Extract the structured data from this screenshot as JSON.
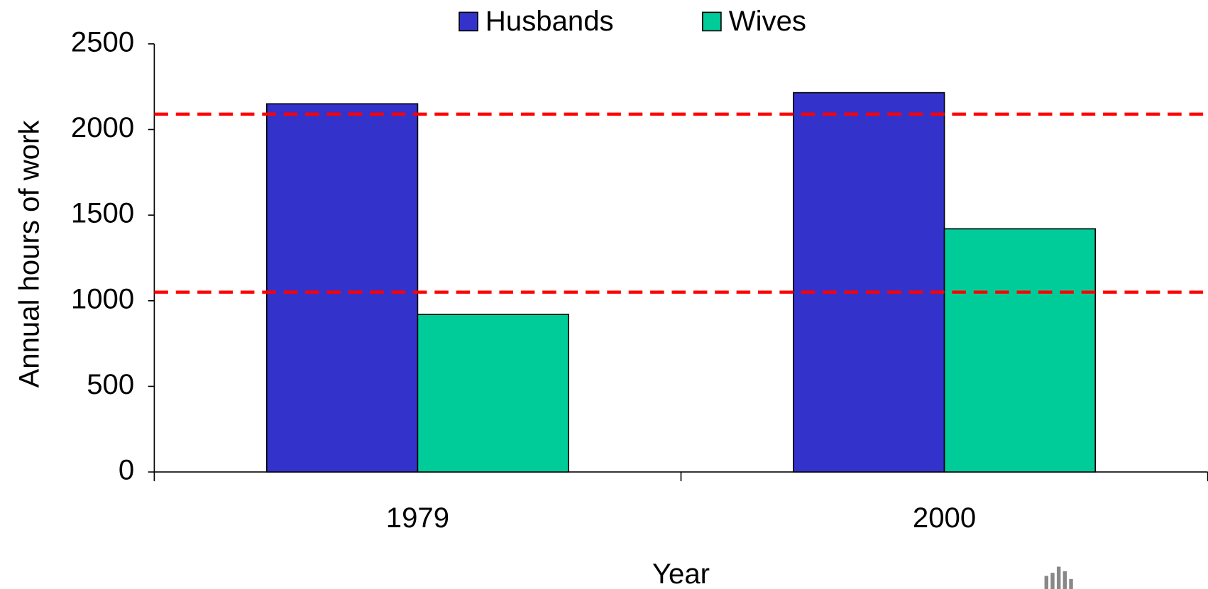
{
  "chart_data": {
    "type": "bar",
    "x_label": "Year",
    "y_label": "Annual hours of work",
    "categories": [
      "1979",
      "2000"
    ],
    "series": [
      {
        "name": "Husbands",
        "color": "#3333cc",
        "values": [
          2150,
          2215
        ]
      },
      {
        "name": "Wives",
        "color": "#00cc99",
        "values": [
          920,
          1420
        ]
      }
    ],
    "ylim": [
      0,
      2500
    ],
    "yticks": [
      0,
      500,
      1000,
      1500,
      2000,
      2500
    ],
    "reference_lines": [
      2090,
      1050
    ],
    "reference_line_color": "#ff0000",
    "legend": "top"
  }
}
